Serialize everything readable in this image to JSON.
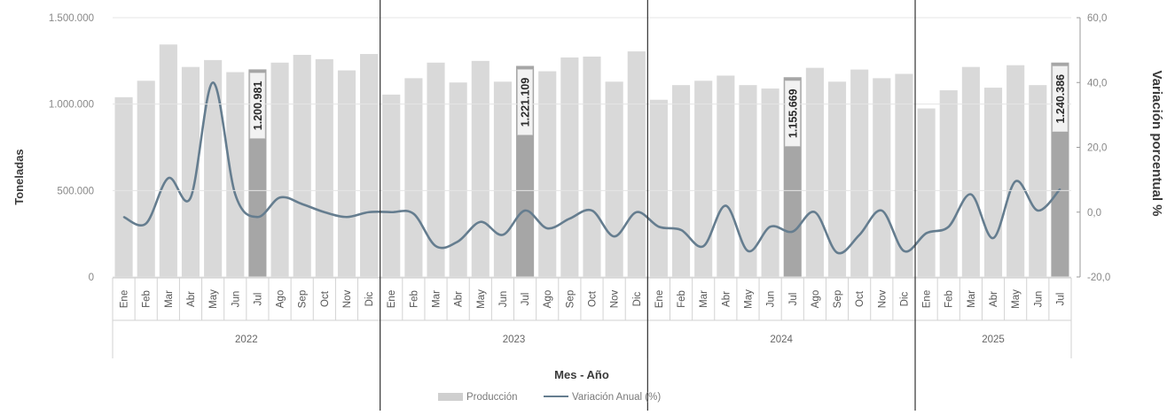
{
  "chart_data": {
    "type": "bar",
    "title": "",
    "xlabel": "Mes - Año",
    "ylabel": "Toneladas",
    "y2label": "Variación porcentual %",
    "ylim": [
      0,
      1500000
    ],
    "y2lim": [
      -20,
      60
    ],
    "y_ticks": [
      "0",
      "500.000",
      "1.000.000",
      "1.500.000"
    ],
    "y2_ticks": [
      "-20,0",
      "0,0",
      "20,0",
      "40,0",
      "60,0"
    ],
    "legend_position": "bottom",
    "years": [
      {
        "label": "2022",
        "months": 12
      },
      {
        "label": "2023",
        "months": 12
      },
      {
        "label": "2024",
        "months": 12
      },
      {
        "label": "2025",
        "months": 7
      }
    ],
    "months": [
      "Ene",
      "Feb",
      "Mar",
      "Abr",
      "May",
      "Jun",
      "Jul",
      "Ago",
      "Sep",
      "Oct",
      "Nov",
      "Dic",
      "Ene",
      "Feb",
      "Mar",
      "Abr",
      "May",
      "Jun",
      "Jul",
      "Ago",
      "Sep",
      "Oct",
      "Nov",
      "Dic",
      "Ene",
      "Feb",
      "Mar",
      "Abr",
      "May",
      "Jun",
      "Jul",
      "Ago",
      "Sep",
      "Oct",
      "Nov",
      "Dic",
      "Ene",
      "Feb",
      "Mar",
      "Abr",
      "May",
      "Jun",
      "Jul"
    ],
    "series": [
      {
        "name": "Producción",
        "type": "bar",
        "color": "#d9d9d9",
        "highlight_color": "#a6a6a6",
        "values": [
          1040000,
          1135000,
          1345000,
          1215000,
          1255000,
          1185000,
          1200981,
          1240000,
          1285000,
          1260000,
          1195000,
          1290000,
          1055000,
          1150000,
          1240000,
          1125000,
          1250000,
          1130000,
          1221109,
          1190000,
          1270000,
          1275000,
          1130000,
          1305000,
          1025000,
          1110000,
          1135000,
          1165000,
          1110000,
          1090000,
          1155669,
          1210000,
          1130000,
          1200000,
          1150000,
          1175000,
          975000,
          1080000,
          1215000,
          1095000,
          1225000,
          1110000,
          1240386
        ]
      },
      {
        "name": "Variación Anual (%)",
        "type": "line",
        "color": "#657d8f",
        "values": [
          -1.5,
          -3.5,
          10.5,
          4.5,
          40,
          5.5,
          -1.5,
          4.5,
          2.5,
          0,
          -1.5,
          0,
          0,
          -0.5,
          -10.5,
          -9,
          -3,
          -7,
          0.5,
          -5,
          -2,
          0.5,
          -7.5,
          0,
          -4.5,
          -5.5,
          -10.5,
          2,
          -12,
          -4.5,
          -6,
          0,
          -12.5,
          -7,
          0.5,
          -12,
          -6.5,
          -4.5,
          5.5,
          -8,
          9.5,
          0.5,
          7.1
        ]
      }
    ],
    "highlighted_indices": [
      6,
      18,
      30,
      42
    ],
    "data_labels": [
      {
        "index": 6,
        "text": "1.200.981"
      },
      {
        "index": 18,
        "text": "1.221.109"
      },
      {
        "index": 30,
        "text": "1.155.669"
      },
      {
        "index": 42,
        "text": "1.240.386"
      }
    ],
    "legend": [
      {
        "label": "Producción",
        "kind": "bar",
        "color": "#cfcfcf"
      },
      {
        "label": "Variación Anual (%)",
        "kind": "line",
        "color": "#657d8f"
      }
    ],
    "colors": {
      "axis_text": "#888888",
      "title_text": "#3a3a3a",
      "grid": "#e4e4e4",
      "separator": "#333333"
    }
  }
}
